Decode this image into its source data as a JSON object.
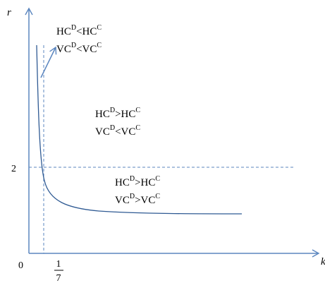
{
  "colors": {
    "axis": "#5b86bf",
    "curve": "#2f5a93",
    "text": "#000000",
    "background": "#ffffff"
  },
  "axes": {
    "y_label": "r",
    "x_label": "k",
    "origin_label": "0",
    "y_mark_label": "2",
    "x_mark_numerator": "1",
    "x_mark_denominator": "7"
  },
  "regions": [
    {
      "id": "top-left",
      "lines": [
        {
          "a": "HC",
          "a_sup": "D",
          "op": "<",
          "b": "HC",
          "b_sup": "C"
        },
        {
          "a": "VC",
          "a_sup": "D",
          "op": "<",
          "b": "VC",
          "b_sup": "C"
        }
      ]
    },
    {
      "id": "middle",
      "lines": [
        {
          "a": "HC",
          "a_sup": "D",
          "op": ">",
          "b": "HC",
          "b_sup": "C"
        },
        {
          "a": "VC",
          "a_sup": "D",
          "op": "<",
          "b": "VC",
          "b_sup": "C"
        }
      ]
    },
    {
      "id": "bottom",
      "lines": [
        {
          "a": "HC",
          "a_sup": "D",
          "op": ">",
          "b": "HC",
          "b_sup": "C"
        },
        {
          "a": "VC",
          "a_sup": "D",
          "op": ">",
          "b": "VC",
          "b_sup": "C"
        }
      ]
    }
  ]
}
